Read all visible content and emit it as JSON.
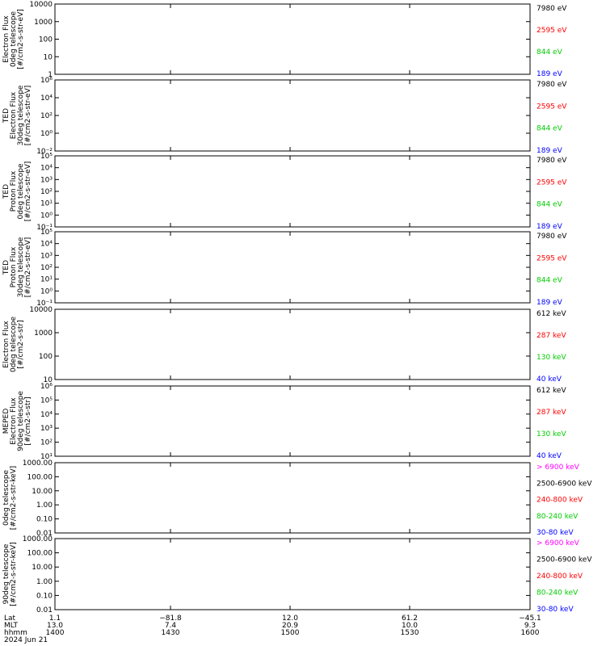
{
  "chart_data": [
    {
      "type": "line",
      "ylabel": [
        "Electron Flux",
        "0deg telescope",
        "[#/cm2-s-str-eV]"
      ],
      "yscale": "log",
      "ylim": [
        1,
        10000
      ],
      "ticks": [
        "1",
        "10",
        "100",
        "1000",
        "10000"
      ],
      "series": [
        {
          "name": "7980 eV",
          "color": "#000000",
          "values": []
        },
        {
          "name": "2595 eV",
          "color": "#ff0000",
          "values": []
        },
        {
          "name": "844 eV",
          "color": "#00cc00",
          "values": []
        },
        {
          "name": "189 eV",
          "color": "#0000ff",
          "values": []
        }
      ]
    },
    {
      "type": "line",
      "ylabel": [
        "TED",
        "Electron Flux",
        "30deg telescope",
        "[#/cm2-s-str-eV]"
      ],
      "yscale": "log",
      "ylim": [
        0.01,
        1000000
      ],
      "ticks": [
        "10^-2",
        "10^0",
        "10^2",
        "10^4",
        "10^6"
      ],
      "series": [
        {
          "name": "7980 eV",
          "color": "#000000",
          "values": []
        },
        {
          "name": "2595 eV",
          "color": "#ff0000",
          "values": []
        },
        {
          "name": "844 eV",
          "color": "#00cc00",
          "values": []
        },
        {
          "name": "189 eV",
          "color": "#0000ff",
          "values": []
        }
      ]
    },
    {
      "type": "line",
      "ylabel": [
        "TED",
        "Proton Flux",
        "0deg telescope",
        "[#/cm2-s-str-eV]"
      ],
      "yscale": "log",
      "ylim": [
        0.1,
        100000
      ],
      "ticks": [
        "10^-1",
        "10^0",
        "10^1",
        "10^2",
        "10^3",
        "10^4",
        "10^5"
      ],
      "series": [
        {
          "name": "7980 eV",
          "color": "#000000",
          "values": []
        },
        {
          "name": "2595 eV",
          "color": "#ff0000",
          "values": []
        },
        {
          "name": "844 eV",
          "color": "#00cc00",
          "values": []
        },
        {
          "name": "189 eV",
          "color": "#0000ff",
          "values": []
        }
      ]
    },
    {
      "type": "line",
      "ylabel": [
        "TED",
        "Proton Flux",
        "30deg telescope",
        "[#/cm2-s-str-eV]"
      ],
      "yscale": "log",
      "ylim": [
        0.1,
        100000
      ],
      "ticks": [
        "10^-1",
        "10^0",
        "10^1",
        "10^2",
        "10^3",
        "10^4",
        "10^5"
      ],
      "series": [
        {
          "name": "7980 eV",
          "color": "#000000",
          "values": []
        },
        {
          "name": "2595 eV",
          "color": "#ff0000",
          "values": []
        },
        {
          "name": "844 eV",
          "color": "#00cc00",
          "values": []
        },
        {
          "name": "189 eV",
          "color": "#0000ff",
          "values": []
        }
      ]
    },
    {
      "type": "line",
      "ylabel": [
        "Electron Flux",
        "0deg telescope",
        "[#/cm2-s-str]"
      ],
      "yscale": "log",
      "ylim": [
        10,
        10000
      ],
      "ticks": [
        "10",
        "100",
        "1000",
        "10000"
      ],
      "series": [
        {
          "name": "612 keV",
          "color": "#000000",
          "values": []
        },
        {
          "name": "287 keV",
          "color": "#ff0000",
          "values": []
        },
        {
          "name": "130 keV",
          "color": "#00cc00",
          "values": []
        },
        {
          "name": "40 keV",
          "color": "#0000ff",
          "values": []
        }
      ]
    },
    {
      "type": "line",
      "ylabel": [
        "MEPED",
        "Electron Flux",
        "90deg telescope",
        "[#/cm2-s-str]"
      ],
      "yscale": "log",
      "ylim": [
        10,
        1000000
      ],
      "ticks": [
        "10^1",
        "10^2",
        "10^3",
        "10^4",
        "10^5",
        "10^6"
      ],
      "series": [
        {
          "name": "612 keV",
          "color": "#000000",
          "values": []
        },
        {
          "name": "287 keV",
          "color": "#ff0000",
          "values": []
        },
        {
          "name": "130 keV",
          "color": "#00cc00",
          "values": []
        },
        {
          "name": "40 keV",
          "color": "#0000ff",
          "values": []
        }
      ]
    },
    {
      "type": "line",
      "ylabel": [
        "0deg telescope",
        "[#/cm2-s-str-keV]"
      ],
      "yscale": "log",
      "ylim": [
        0.01,
        1000
      ],
      "ticks": [
        "0.01",
        "0.10",
        "1.00",
        "10.00",
        "100.00",
        "1000.00"
      ],
      "series": [
        {
          "name": "> 6900 keV",
          "color": "#ff00ff",
          "values": []
        },
        {
          "name": "2500-6900 keV",
          "color": "#000000",
          "values": []
        },
        {
          "name": "240-800 keV",
          "color": "#ff0000",
          "values": []
        },
        {
          "name": "80-240 keV",
          "color": "#00cc00",
          "values": []
        },
        {
          "name": "30-80 keV",
          "color": "#0000ff",
          "values": []
        }
      ]
    },
    {
      "type": "line",
      "ylabel": [
        "90deg telescope",
        "[#/cm2-s-str-keV]"
      ],
      "yscale": "log",
      "ylim": [
        0.01,
        1000
      ],
      "ticks": [
        "0.01",
        "0.10",
        "1.00",
        "10.00",
        "100.00",
        "1000.00"
      ],
      "series": [
        {
          "name": "> 6900 keV",
          "color": "#ff00ff",
          "values": []
        },
        {
          "name": "2500-6900 keV",
          "color": "#000000",
          "values": []
        },
        {
          "name": "240-800 keV",
          "color": "#ff0000",
          "values": []
        },
        {
          "name": "80-240 keV",
          "color": "#00cc00",
          "values": []
        },
        {
          "name": "30-80 keV",
          "color": "#0000ff",
          "values": []
        }
      ]
    }
  ],
  "x_axis": {
    "row_labels": [
      "Lat",
      "MLT",
      "hhmm"
    ],
    "date": "2024 Jun 21",
    "columns": [
      {
        "lat": "1.1",
        "mlt": "13.0",
        "hhmm": "1400"
      },
      {
        "lat": "−81.8",
        "mlt": "7.4",
        "hhmm": "1430"
      },
      {
        "lat": "12.0",
        "mlt": "20.9",
        "hhmm": "1500"
      },
      {
        "lat": "61.2",
        "mlt": "10.0",
        "hhmm": "1530"
      },
      {
        "lat": "−45.1",
        "mlt": "9.3",
        "hhmm": "1600"
      }
    ]
  }
}
